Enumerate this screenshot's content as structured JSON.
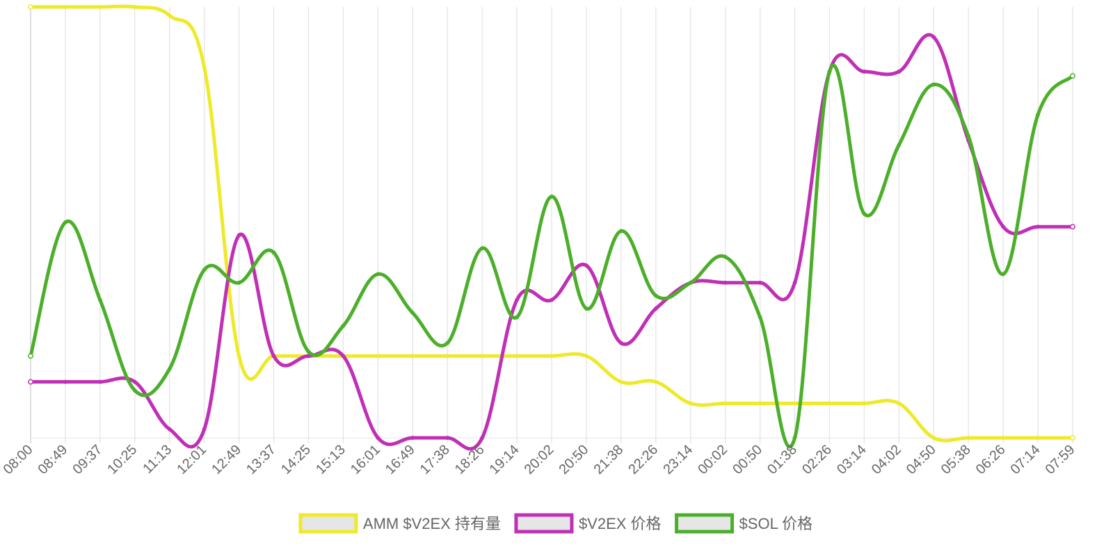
{
  "chart_data": {
    "type": "line",
    "x": [
      "08:00",
      "08:49",
      "09:37",
      "10:25",
      "11:13",
      "12:01",
      "12:49",
      "13:37",
      "14:25",
      "15:13",
      "16:01",
      "16:49",
      "17:38",
      "18:26",
      "19:14",
      "20:02",
      "20:50",
      "21:38",
      "22:26",
      "23:14",
      "00:02",
      "00:50",
      "01:38",
      "02:26",
      "03:14",
      "04:02",
      "04:50",
      "05:38",
      "06:26",
      "07:14",
      "07:59"
    ],
    "y_axis_shown": false,
    "grid": "vertical",
    "legend_position": "bottom",
    "series": [
      {
        "name": "AMM $V2EX 持有量",
        "color": "#eeea2a",
        "fill_color": "#e6e6e6",
        "values": [
          100,
          100,
          100,
          100,
          98,
          86,
          19,
          19,
          19,
          19,
          19,
          19,
          19,
          19,
          19,
          19,
          19,
          13,
          13,
          8,
          8,
          8,
          8,
          8,
          8,
          8,
          0,
          0,
          0,
          0,
          0
        ]
      },
      {
        "name": "$V2EX 价格",
        "color": "#c02fb5",
        "fill_color": "#e6e6e6",
        "values": [
          13,
          13,
          13,
          13,
          2,
          2,
          47,
          19,
          19,
          19,
          0,
          0,
          0,
          0,
          32,
          32,
          40,
          22,
          30,
          36,
          36,
          36,
          36,
          85,
          85,
          85,
          93,
          69,
          49,
          49,
          49
        ]
      },
      {
        "name": "$SOL 价格",
        "color": "#4caf2a",
        "fill_color": "#e6e6e6",
        "values": [
          19,
          50,
          32,
          11,
          16,
          39,
          36,
          43,
          20,
          26,
          38,
          29,
          22,
          44,
          28,
          56,
          30,
          48,
          33,
          36,
          42,
          28,
          0,
          85,
          52,
          68,
          82,
          70,
          38,
          75,
          84
        ]
      }
    ]
  }
}
